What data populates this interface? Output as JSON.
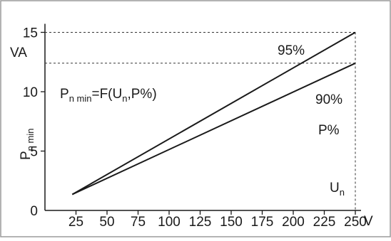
{
  "chart_data": {
    "type": "line",
    "formula": "P",
    "formula_sub1": "n min",
    "formula_mid": "=F(U",
    "formula_sub2": "n",
    "formula_end": ",P%)",
    "ylabel": "P",
    "ylabel_sub": "n min",
    "yunit": "VA",
    "xunit": "V",
    "param_label": "P%",
    "xvar": "U",
    "xvar_sub": "n",
    "xlim": [
      0,
      250
    ],
    "ylim": [
      0,
      15
    ],
    "xticks": [
      25,
      50,
      75,
      100,
      125,
      150,
      175,
      200,
      225,
      250
    ],
    "yticks": [
      0,
      5,
      10,
      15
    ],
    "series": [
      {
        "name": "95%",
        "x": [
          22,
          250
        ],
        "y": [
          1.35,
          15.0
        ]
      },
      {
        "name": "90%",
        "x": [
          22,
          250
        ],
        "y": [
          1.35,
          12.4
        ]
      }
    ],
    "reference_lines": [
      {
        "axis": "y",
        "value": 15.0
      },
      {
        "axis": "y",
        "value": 12.4
      },
      {
        "axis": "x",
        "value": 250
      }
    ],
    "colors": {
      "line": "#1a1a1a",
      "border": "#9a9a9a",
      "dashed": "#333333"
    }
  }
}
